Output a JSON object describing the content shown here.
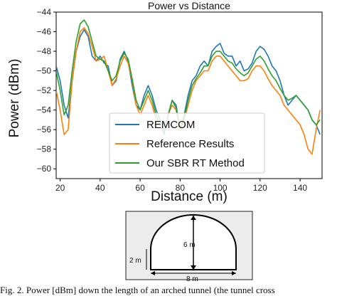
{
  "chart_data": {
    "type": "line",
    "title": "Power vs Distance",
    "xlabel": "Distance (m)",
    "ylabel": "Power (dBm)",
    "xlim": [
      18,
      151
    ],
    "ylim": [
      -61,
      -44
    ],
    "xticks": [
      20,
      40,
      60,
      80,
      100,
      120,
      140
    ],
    "yticks": [
      -44,
      -46,
      -48,
      -50,
      -52,
      -54,
      -56,
      -58,
      -60
    ],
    "legend_position": "lower-center",
    "grid": false,
    "series": [
      {
        "name": "REMCOM",
        "color": "#1f77b4",
        "points": [
          [
            18,
            -49.5
          ],
          [
            20,
            -51
          ],
          [
            22,
            -53.5
          ],
          [
            24,
            -54.8
          ],
          [
            26,
            -51
          ],
          [
            28,
            -48
          ],
          [
            30,
            -46.5
          ],
          [
            32,
            -45.8
          ],
          [
            34,
            -46.5
          ],
          [
            36,
            -48.5
          ],
          [
            38,
            -49
          ],
          [
            40,
            -48.5
          ],
          [
            42,
            -49.2
          ],
          [
            44,
            -49.5
          ],
          [
            46,
            -51.5
          ],
          [
            48,
            -51
          ],
          [
            50,
            -48.8
          ],
          [
            52,
            -48
          ],
          [
            54,
            -49
          ],
          [
            56,
            -51.5
          ],
          [
            58,
            -53.5
          ],
          [
            60,
            -54
          ],
          [
            62,
            -52.5
          ],
          [
            64,
            -51.5
          ],
          [
            66,
            -52.5
          ],
          [
            68,
            -54
          ],
          [
            70,
            -55
          ],
          [
            72,
            -56.5
          ],
          [
            74,
            -54.5
          ],
          [
            76,
            -53
          ],
          [
            78,
            -53.5
          ],
          [
            80,
            -56
          ],
          [
            82,
            -54.5
          ],
          [
            84,
            -52.5
          ],
          [
            86,
            -51
          ],
          [
            88,
            -50.5
          ],
          [
            90,
            -49.5
          ],
          [
            92,
            -49
          ],
          [
            94,
            -49.5
          ],
          [
            96,
            -48
          ],
          [
            98,
            -47.5
          ],
          [
            100,
            -47.2
          ],
          [
            102,
            -48.2
          ],
          [
            104,
            -48.5
          ],
          [
            106,
            -48.5
          ],
          [
            108,
            -49.5
          ],
          [
            110,
            -49
          ],
          [
            112,
            -50
          ],
          [
            114,
            -49.8
          ],
          [
            116,
            -49.2
          ],
          [
            118,
            -48
          ],
          [
            120,
            -47.5
          ],
          [
            122,
            -47.8
          ],
          [
            124,
            -48.5
          ],
          [
            126,
            -49.5
          ],
          [
            128,
            -50
          ],
          [
            130,
            -51
          ],
          [
            132,
            -52.5
          ],
          [
            134,
            -53.5
          ],
          [
            136,
            -53
          ],
          [
            138,
            -52.5
          ],
          [
            140,
            -53
          ],
          [
            142,
            -53.5
          ],
          [
            144,
            -54
          ],
          [
            146,
            -55
          ],
          [
            148,
            -55.5
          ],
          [
            150,
            -56.5
          ]
        ]
      },
      {
        "name": "Reference Results",
        "color": "#ff7f0e",
        "points": [
          [
            18,
            -52
          ],
          [
            20,
            -54
          ],
          [
            22,
            -56.5
          ],
          [
            24,
            -56
          ],
          [
            26,
            -51
          ],
          [
            28,
            -48
          ],
          [
            30,
            -46
          ],
          [
            32,
            -45.6
          ],
          [
            34,
            -46.2
          ],
          [
            36,
            -47.5
          ],
          [
            38,
            -49
          ],
          [
            40,
            -48.8
          ],
          [
            42,
            -48.5
          ],
          [
            44,
            -50
          ],
          [
            46,
            -51.5
          ],
          [
            48,
            -50.8
          ],
          [
            50,
            -49.5
          ],
          [
            52,
            -48.5
          ],
          [
            54,
            -49.2
          ],
          [
            56,
            -51
          ],
          [
            58,
            -53.5
          ],
          [
            60,
            -54.5
          ],
          [
            62,
            -53.5
          ],
          [
            64,
            -52.5
          ],
          [
            66,
            -53.5
          ],
          [
            68,
            -55
          ],
          [
            70,
            -55.5
          ],
          [
            72,
            -56
          ],
          [
            74,
            -54.5
          ],
          [
            76,
            -53.5
          ],
          [
            78,
            -54
          ],
          [
            80,
            -56
          ],
          [
            82,
            -55
          ],
          [
            84,
            -53.5
          ],
          [
            86,
            -52
          ],
          [
            88,
            -51
          ],
          [
            90,
            -50.5
          ],
          [
            92,
            -50
          ],
          [
            94,
            -50
          ],
          [
            96,
            -49
          ],
          [
            98,
            -48.5
          ],
          [
            100,
            -48.5
          ],
          [
            102,
            -49
          ],
          [
            104,
            -49.5
          ],
          [
            106,
            -50
          ],
          [
            108,
            -50.5
          ],
          [
            110,
            -51
          ],
          [
            112,
            -51
          ],
          [
            114,
            -50.8
          ],
          [
            116,
            -50
          ],
          [
            118,
            -49.5
          ],
          [
            120,
            -49.5
          ],
          [
            122,
            -50
          ],
          [
            124,
            -50.8
          ],
          [
            126,
            -51.5
          ],
          [
            128,
            -52
          ],
          [
            130,
            -52.5
          ],
          [
            132,
            -53.5
          ],
          [
            134,
            -54
          ],
          [
            136,
            -54.5
          ],
          [
            138,
            -55
          ],
          [
            140,
            -55.5
          ],
          [
            142,
            -56.5
          ],
          [
            144,
            -58
          ],
          [
            146,
            -58.5
          ],
          [
            148,
            -56
          ],
          [
            150,
            -54
          ]
        ]
      },
      {
        "name": "Our SBR RT Method",
        "color": "#2ca02c",
        "points": [
          [
            18,
            -50
          ],
          [
            20,
            -52
          ],
          [
            22,
            -54.5
          ],
          [
            24,
            -53.5
          ],
          [
            26,
            -50
          ],
          [
            28,
            -47
          ],
          [
            30,
            -45.2
          ],
          [
            32,
            -44.8
          ],
          [
            34,
            -45.5
          ],
          [
            36,
            -47
          ],
          [
            38,
            -48.5
          ],
          [
            40,
            -48.8
          ],
          [
            42,
            -49
          ],
          [
            44,
            -50
          ],
          [
            46,
            -51
          ],
          [
            48,
            -50.5
          ],
          [
            50,
            -49
          ],
          [
            52,
            -48.2
          ],
          [
            54,
            -48.8
          ],
          [
            56,
            -50.8
          ],
          [
            58,
            -53
          ],
          [
            60,
            -54
          ],
          [
            62,
            -53
          ],
          [
            64,
            -52
          ],
          [
            66,
            -53
          ],
          [
            68,
            -54.5
          ],
          [
            70,
            -55.5
          ],
          [
            72,
            -56.2
          ],
          [
            74,
            -54.5
          ],
          [
            76,
            -53
          ],
          [
            78,
            -53.8
          ],
          [
            80,
            -55.8
          ],
          [
            82,
            -54.8
          ],
          [
            84,
            -53
          ],
          [
            86,
            -51.5
          ],
          [
            88,
            -50.8
          ],
          [
            90,
            -50.2
          ],
          [
            92,
            -49.5
          ],
          [
            94,
            -49.5
          ],
          [
            96,
            -48.5
          ],
          [
            98,
            -48
          ],
          [
            100,
            -48
          ],
          [
            102,
            -48.5
          ],
          [
            104,
            -49
          ],
          [
            106,
            -49.2
          ],
          [
            108,
            -49.8
          ],
          [
            110,
            -50.2
          ],
          [
            112,
            -50.5
          ],
          [
            114,
            -50.2
          ],
          [
            116,
            -49.5
          ],
          [
            118,
            -48.8
          ],
          [
            120,
            -48.5
          ],
          [
            122,
            -49
          ],
          [
            124,
            -49.8
          ],
          [
            126,
            -50.5
          ],
          [
            128,
            -51
          ],
          [
            130,
            -51.8
          ],
          [
            132,
            -52.5
          ],
          [
            134,
            -53
          ],
          [
            136,
            -52.8
          ],
          [
            138,
            -52.5
          ],
          [
            140,
            -53
          ],
          [
            142,
            -53.5
          ],
          [
            144,
            -54
          ],
          [
            146,
            -55
          ],
          [
            148,
            -55.5
          ],
          [
            150,
            -55
          ]
        ]
      }
    ]
  },
  "diagram": {
    "height_label": "6 m",
    "wall_label": "2 m",
    "width_label": "8 m"
  },
  "caption": "Fig. 2. Power [dBm] down the length of an arched tunnel (the tunnel cross"
}
